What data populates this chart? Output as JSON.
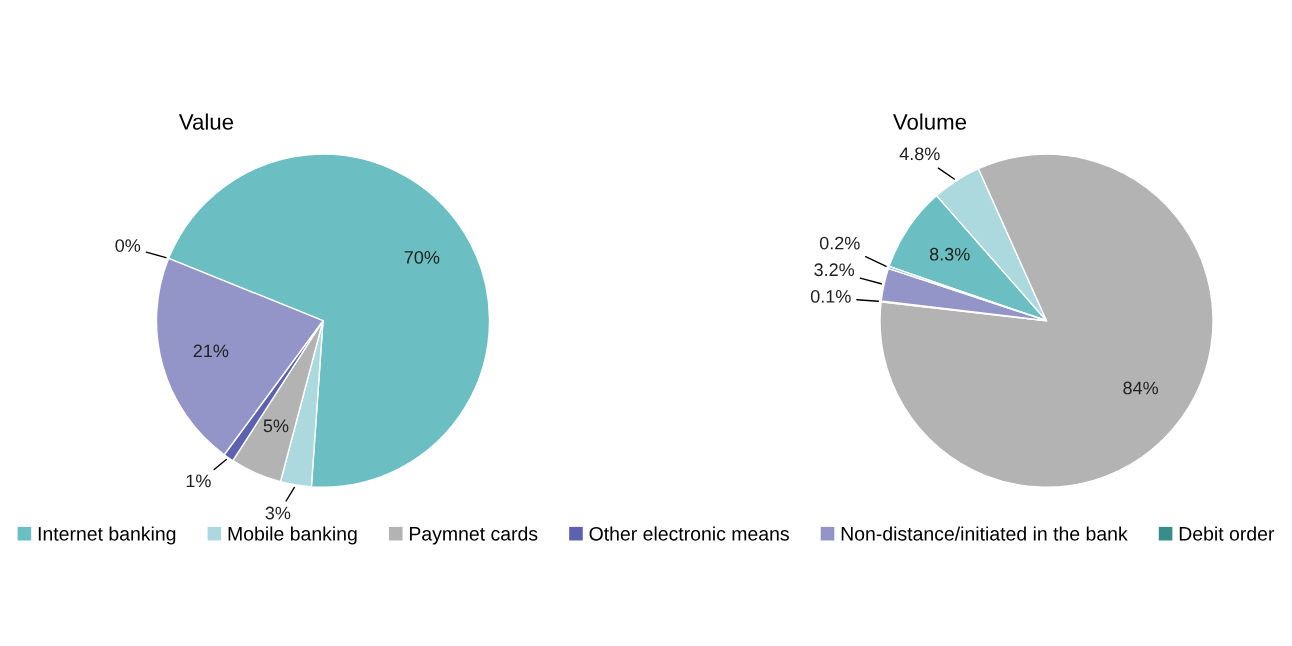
{
  "chart_data": [
    {
      "type": "pie",
      "title": "Value",
      "categories": [
        "Internet banking",
        "Mobile banking",
        "Paymnet cards",
        "Other electronic means",
        "Non-distance/initiated in the bank",
        "Debit order"
      ],
      "values": [
        70,
        3,
        5,
        1,
        21,
        0
      ],
      "colors": [
        "#6bbfc2",
        "#acd9dd",
        "#b3b3b3",
        "#5c62b0",
        "#9394c8",
        "#3a8c8c"
      ],
      "value_labels": [
        "70%",
        "3%",
        "5%",
        "1%",
        "21%",
        "0%"
      ],
      "legend": "bottom"
    },
    {
      "type": "pie",
      "title": "Volume",
      "categories": [
        null,
        null,
        null,
        null,
        null,
        null
      ],
      "values": [
        8.3,
        4.8,
        84,
        0.1,
        3.2,
        0.2
      ],
      "colors": [
        "#6bbfc2",
        "#acd9dd",
        "#b3b3b3",
        "#5c62b0",
        "#9394c8",
        "#3a8c8c"
      ],
      "value_labels": [
        "8.3%",
        "4.8%",
        "84%",
        "0.1%",
        "3.2%",
        "0.2%"
      ]
    }
  ]
}
